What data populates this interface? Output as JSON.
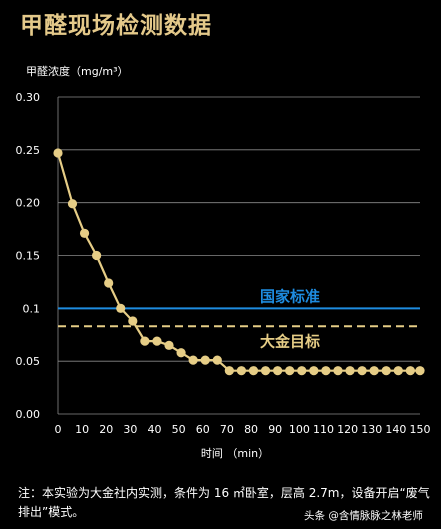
{
  "title": "甲醛现场检测数据",
  "note": "注：本实验为大金社内实测，条件为 16 ㎡卧室，层高 2.7m，设备开启“废气排出”模式。",
  "watermark": "头条 @含情脉脉之林老师",
  "colors": {
    "title": "#e4c98a",
    "series": "#e6cd86",
    "national": "#1e8ce0",
    "target": "#e6cd86",
    "grid": "#8a8a8a",
    "text": "#ffffff"
  },
  "chart_data": {
    "type": "line",
    "ylabel": "甲醛浓度（mg/m³）",
    "xlabel": "时间 （min）",
    "ylim": [
      0,
      0.3
    ],
    "xlim": [
      0,
      150
    ],
    "yticks": [
      0.3,
      0.25,
      0.2,
      0.15,
      0.1,
      0.05,
      0.0
    ],
    "ytick_labels": [
      "0.30",
      "0.25",
      "0.20",
      "0.15",
      "0.1",
      "0.05",
      "0.00"
    ],
    "xticks": [
      0,
      10,
      20,
      30,
      40,
      50,
      60,
      70,
      80,
      90,
      100,
      110,
      120,
      130,
      140,
      150
    ],
    "grid": "horizontal",
    "series": [
      {
        "x": [
          0,
          6,
          11,
          16,
          21,
          26,
          31,
          36,
          41,
          46,
          51,
          56,
          61,
          66,
          71,
          76,
          81,
          86,
          91,
          96,
          101,
          106,
          111,
          116,
          121,
          126,
          131,
          136,
          141,
          146,
          150
        ],
        "values": [
          0.247,
          0.199,
          0.171,
          0.15,
          0.124,
          0.1,
          0.088,
          0.069,
          0.069,
          0.065,
          0.058,
          0.051,
          0.051,
          0.051,
          0.041,
          0.041,
          0.041,
          0.041,
          0.041,
          0.041,
          0.041,
          0.041,
          0.041,
          0.041,
          0.041,
          0.041,
          0.041,
          0.041,
          0.041,
          0.041,
          0.041
        ]
      }
    ],
    "reference_lines": [
      {
        "label": "国家标准",
        "value": 0.1,
        "style": "solid",
        "color": "#1e8ce0"
      },
      {
        "label": "大金目标",
        "value": 0.083,
        "style": "dashed",
        "color": "#e6cd86"
      }
    ]
  }
}
